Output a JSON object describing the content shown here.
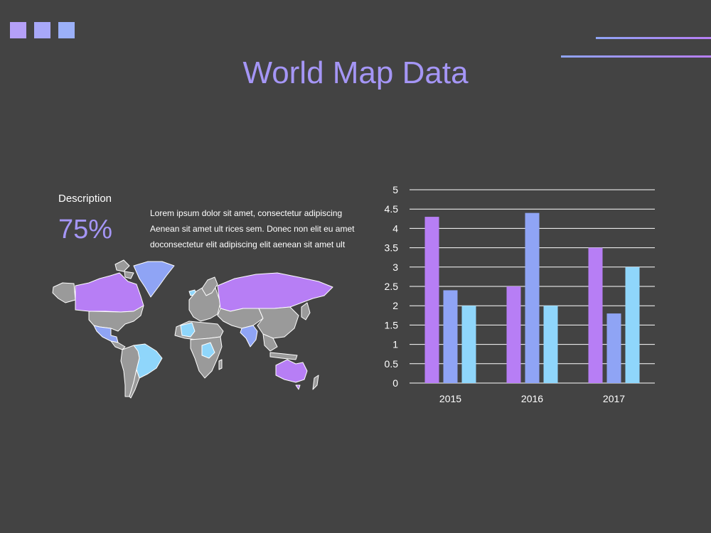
{
  "colors": {
    "background": "#434343",
    "purple": "#b77ef5",
    "blue": "#8fa4f5",
    "cyan": "#8fd6fb",
    "gray": "#9a9a9a",
    "title": "#a596f6",
    "grid": "#ffffff"
  },
  "header": {
    "title": "World Map Data",
    "squares": [
      "#b5a0f8",
      "#a8a8f8",
      "#9bb0f8"
    ]
  },
  "description": {
    "label": "Description",
    "percent": "75%",
    "lines": [
      "Lorem ipsum dolor sit amet, consectetur adipiscing",
      "Aenean sit amet ult rices sem. Donec non elit eu amet",
      "doconsectetur elit adipiscing elit aenean sit amet ult"
    ]
  },
  "map": {
    "highlighted_regions": [
      {
        "name": "Greenland",
        "color": "blue"
      },
      {
        "name": "Canada",
        "color": "purple"
      },
      {
        "name": "Russia",
        "color": "purple"
      },
      {
        "name": "Australia",
        "color": "purple"
      },
      {
        "name": "Brazil",
        "color": "cyan"
      },
      {
        "name": "Mexico",
        "color": "blue"
      },
      {
        "name": "India",
        "color": "blue"
      },
      {
        "name": "West Africa",
        "color": "cyan"
      },
      {
        "name": "East Africa",
        "color": "cyan"
      }
    ]
  },
  "chart_data": {
    "type": "bar",
    "categories": [
      "2015",
      "2016",
      "2017"
    ],
    "series": [
      {
        "values": [
          4.3,
          2.5,
          3.5
        ],
        "color": "#b77ef5"
      },
      {
        "values": [
          2.4,
          4.4,
          1.8
        ],
        "color": "#8fa4f5"
      },
      {
        "values": [
          2.0,
          2.0,
          3.0
        ],
        "color": "#8fd6fb"
      }
    ],
    "ylim": [
      0,
      5
    ],
    "yticks": [
      "0",
      "0.5",
      "1",
      "1.5",
      "2",
      "2.5",
      "3",
      "3.5",
      "4",
      "4.5",
      "5"
    ],
    "grid": true,
    "legend": "none"
  }
}
